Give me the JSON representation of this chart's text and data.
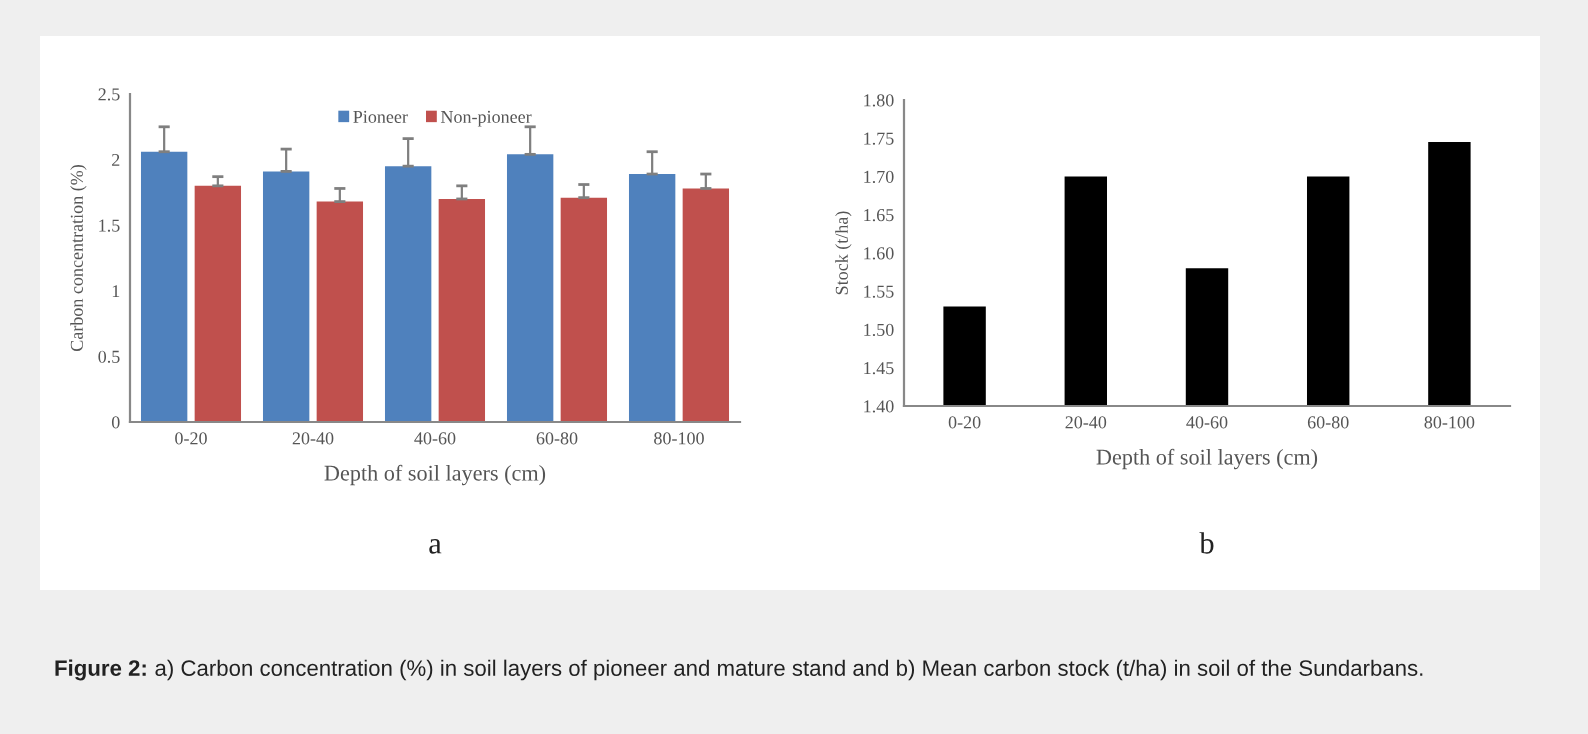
{
  "chart_data": [
    {
      "type": "bar",
      "categories": [
        "0-20",
        "20-40",
        "40-60",
        "60-80",
        "80-100"
      ],
      "xlabel": "Depth of soil layers (cm)",
      "ylabel": "Carbon concentration (%)",
      "ylim": [
        0,
        2.5
      ],
      "yticks": [
        0,
        0.5,
        1,
        1.5,
        2,
        2.5
      ],
      "grid": false,
      "legend": "top",
      "series": [
        {
          "name": "Pioneer",
          "color": "#4f81bd",
          "values": [
            2.06,
            1.91,
            1.95,
            2.04,
            1.89
          ],
          "errors": [
            0.19,
            0.17,
            0.21,
            0.21,
            0.17
          ]
        },
        {
          "name": "Non-pioneer",
          "color": "#c0504d",
          "values": [
            1.8,
            1.68,
            1.7,
            1.71,
            1.78
          ],
          "errors": [
            0.07,
            0.1,
            0.1,
            0.1,
            0.11
          ]
        }
      ],
      "annotations": [
        "a",
        "Figure 2:",
        "a) Carbon concentration (%) in soil layers of pioneer and mature stand and b) Mean carbon stock (t/ha) in soil of the Sundarbans."
      ]
    },
    {
      "type": "bar",
      "categories": [
        "0-20",
        "20-40",
        "40-60",
        "60-80",
        "80-100"
      ],
      "xlabel": "Depth of soil layers (cm)",
      "ylabel": "Stock (t/ha)",
      "ylim": [
        1.4,
        1.8
      ],
      "yticks": [
        {
          "value": 1.4,
          "label": "1.40"
        },
        {
          "value": 1.45,
          "label": "1.45"
        },
        {
          "value": 1.5,
          "label": "1.50"
        },
        {
          "value": 1.55,
          "label": "1.55"
        },
        {
          "value": 1.6,
          "label": "1.60"
        },
        {
          "value": 1.65,
          "label": "1.65"
        },
        {
          "value": 1.7,
          "label": "1.70"
        },
        {
          "value": 1.75,
          "label": "1.75"
        },
        {
          "value": 1.8,
          "label": "1.80"
        }
      ],
      "grid": false,
      "color": "#000000",
      "values": [
        1.53,
        1.7,
        1.58,
        1.7,
        1.745
      ],
      "annotations": [
        "b"
      ]
    }
  ]
}
